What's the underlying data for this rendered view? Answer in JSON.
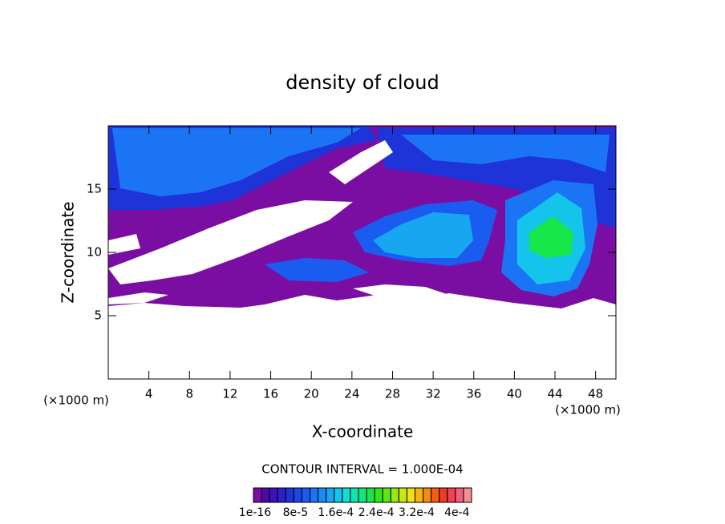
{
  "chart_data": {
    "type": "contour",
    "title": "density of cloud",
    "xlabel": "X-coordinate",
    "ylabel": "Z-coordinate",
    "x_unit": "(×1000 m)",
    "xlim": [
      0,
      50
    ],
    "xticks": [
      4,
      8,
      12,
      16,
      20,
      24,
      28,
      32,
      36,
      40,
      44,
      48
    ],
    "ylim": [
      0,
      20
    ],
    "yticks": [
      5,
      10,
      15
    ],
    "contour_interval": "CONTOUR INTERVAL = 1.000E-04",
    "colorbar_labels": [
      "1e-16",
      "8e-5",
      "1.6e-4",
      "2.4e-4",
      "3.2e-4",
      "4e-4"
    ],
    "colors": [
      "#7a0ea3",
      "#4b0aa8",
      "#3a12b8",
      "#2a22c8",
      "#1e34d8",
      "#1a48e6",
      "#1a5cf0",
      "#1a74f4",
      "#1a8cf4",
      "#18a6f0",
      "#14c4ea",
      "#10dcd8",
      "#10e6b0",
      "#12e680",
      "#18e64a",
      "#2ee61a",
      "#60e614",
      "#98e814",
      "#c8e814",
      "#f0e010",
      "#f4b410",
      "#f48a10",
      "#f45e12",
      "#f03a1c",
      "#f0405a",
      "#f4607a",
      "#f49090"
    ]
  }
}
